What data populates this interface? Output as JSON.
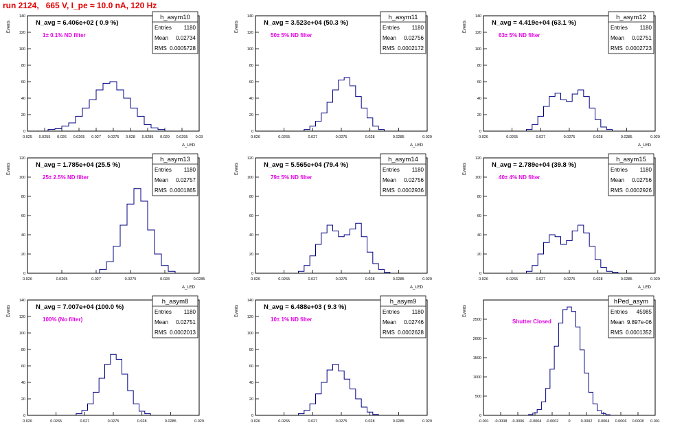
{
  "page_title": "run 2124,   665 V, I_pe ≈ 10.0 nA, 120 Hz",
  "chart_data": [
    {
      "type": "bar",
      "name": "h_asym10",
      "title": "N_avg = 6.406e+02 ( 0.9 %)",
      "annotation": "1± 0.1% ND filter",
      "stats": {
        "Entries": "1180",
        "Mean": "0.02734",
        "RMS": "0.0005728"
      },
      "xlabel": "A_LED",
      "ylabel": "Events",
      "xlim": [
        0.025,
        0.03
      ],
      "ylim": [
        0,
        140
      ],
      "xticks": [
        "0.025",
        "0.0255",
        "0.026",
        "0.0265",
        "0.027",
        "0.0275",
        "0.028",
        "0.0285",
        "0.029",
        "0.0295",
        "0.03"
      ],
      "yticks": [
        "0",
        "20",
        "40",
        "60",
        "80",
        "100",
        "120",
        "140"
      ],
      "x": [
        0.0257,
        0.0259,
        0.0261,
        0.0263,
        0.0265,
        0.0267,
        0.0269,
        0.0271,
        0.0273,
        0.0275,
        0.0277,
        0.0279,
        0.0281,
        0.0283,
        0.0285,
        0.0287,
        0.0289
      ],
      "values": [
        2,
        3,
        6,
        10,
        18,
        28,
        38,
        50,
        58,
        60,
        50,
        40,
        28,
        18,
        8,
        4,
        2
      ]
    },
    {
      "type": "bar",
      "name": "h_asym11",
      "title": "N_avg = 3.523e+04 (50.3 %)",
      "annotation": "50± 5% ND filter",
      "stats": {
        "Entries": "1180",
        "Mean": "0.02756",
        "RMS": "0.0002172"
      },
      "xlabel": "A_LED",
      "ylabel": "Events",
      "xlim": [
        0.026,
        0.029
      ],
      "ylim": [
        0,
        140
      ],
      "xticks": [
        "0.026",
        "0.0265",
        "0.027",
        "0.0275",
        "0.028",
        "0.0285",
        "0.029"
      ],
      "yticks": [
        "0",
        "20",
        "40",
        "60",
        "80",
        "100",
        "120",
        "140"
      ],
      "x": [
        0.0269,
        0.027,
        0.0271,
        0.0272,
        0.0273,
        0.0274,
        0.0275,
        0.0276,
        0.0277,
        0.0278,
        0.0279,
        0.028,
        0.0281,
        0.0282
      ],
      "values": [
        2,
        6,
        12,
        22,
        35,
        50,
        62,
        65,
        55,
        42,
        28,
        16,
        6,
        2
      ]
    },
    {
      "type": "bar",
      "name": "h_asym12",
      "title": "N_avg = 4.419e+04 (63.1 %)",
      "annotation": "63± 5% ND filter",
      "stats": {
        "Entries": "1180",
        "Mean": "0.02751",
        "RMS": "0.0002723"
      },
      "xlabel": "A_LED",
      "ylabel": "Events",
      "xlim": [
        0.026,
        0.029
      ],
      "ylim": [
        0,
        140
      ],
      "xticks": [
        "0.026",
        "0.0265",
        "0.027",
        "0.0275",
        "0.028",
        "0.0285",
        "0.029"
      ],
      "yticks": [
        "0",
        "20",
        "40",
        "60",
        "80",
        "100",
        "120",
        "140"
      ],
      "x": [
        0.0268,
        0.0269,
        0.027,
        0.0271,
        0.0272,
        0.0273,
        0.0274,
        0.0275,
        0.0276,
        0.0277,
        0.0278,
        0.0279,
        0.028,
        0.0281,
        0.0282
      ],
      "values": [
        2,
        8,
        18,
        30,
        42,
        46,
        38,
        36,
        45,
        50,
        42,
        28,
        14,
        5,
        2
      ]
    },
    {
      "type": "bar",
      "name": "h_asym13",
      "title": "N_avg = 1.785e+04 (25.5 %)",
      "annotation": "25± 2.5% ND filter",
      "stats": {
        "Entries": "1180",
        "Mean": "0.02757",
        "RMS": "0.0001865"
      },
      "xlabel": "A_LED",
      "ylabel": "Events",
      "xlim": [
        0.026,
        0.0285
      ],
      "ylim": [
        0,
        120
      ],
      "xticks": [
        "0.026",
        "0.0265",
        "0.027",
        "0.0275",
        "0.028",
        "0.0285"
      ],
      "yticks": [
        "0",
        "20",
        "40",
        "60",
        "80",
        "100",
        "120"
      ],
      "x": [
        0.0271,
        0.0272,
        0.0273,
        0.0274,
        0.0275,
        0.0276,
        0.0277,
        0.0278,
        0.0279,
        0.028,
        0.0281
      ],
      "values": [
        4,
        12,
        28,
        50,
        72,
        88,
        75,
        45,
        20,
        8,
        2
      ]
    },
    {
      "type": "bar",
      "name": "h_asym14",
      "title": "N_avg = 5.565e+04 (79.4 %)",
      "annotation": "79± 5% ND filter",
      "stats": {
        "Entries": "1180",
        "Mean": "0.02756",
        "RMS": "0.0002936"
      },
      "xlabel": "A_LED",
      "ylabel": "Events",
      "xlim": [
        0.026,
        0.029
      ],
      "ylim": [
        0,
        120
      ],
      "xticks": [
        "0.026",
        "0.0265",
        "0.027",
        "0.0275",
        "0.028",
        "0.0285",
        "0.029"
      ],
      "yticks": [
        "0",
        "20",
        "40",
        "60",
        "80",
        "100",
        "120"
      ],
      "x": [
        0.0268,
        0.0269,
        0.027,
        0.0271,
        0.0272,
        0.0273,
        0.0274,
        0.0275,
        0.0276,
        0.0277,
        0.0278,
        0.0279,
        0.028,
        0.0281,
        0.0282,
        0.0283
      ],
      "values": [
        2,
        8,
        18,
        30,
        42,
        50,
        44,
        38,
        40,
        46,
        52,
        38,
        22,
        10,
        4,
        1
      ]
    },
    {
      "type": "bar",
      "name": "h_asym15",
      "title": "N_avg = 2.789e+04 (39.8 %)",
      "annotation": "40± 4% ND filter",
      "stats": {
        "Entries": "1180",
        "Mean": "0.02756",
        "RMS": "0.0002926"
      },
      "xlabel": "A_LED",
      "ylabel": "Events",
      "xlim": [
        0.026,
        0.029
      ],
      "ylim": [
        0,
        120
      ],
      "xticks": [
        "0.026",
        "0.0265",
        "0.027",
        "0.0275",
        "0.028",
        "0.0285",
        "0.029"
      ],
      "yticks": [
        "0",
        "20",
        "40",
        "60",
        "80",
        "100",
        "120"
      ],
      "x": [
        0.0268,
        0.0269,
        0.027,
        0.0271,
        0.0272,
        0.0273,
        0.0274,
        0.0275,
        0.0276,
        0.0277,
        0.0278,
        0.0279,
        0.028,
        0.0281,
        0.0282,
        0.0283
      ],
      "values": [
        2,
        8,
        20,
        32,
        40,
        38,
        30,
        34,
        44,
        50,
        42,
        28,
        14,
        6,
        2,
        1
      ]
    },
    {
      "type": "bar",
      "name": "h_asym8",
      "title": "N_avg = 7.007e+04 (100.0 %)",
      "annotation": "100% (No filter)",
      "stats": {
        "Entries": "1180",
        "Mean": "0.02751",
        "RMS": "0.0002013"
      },
      "xlabel": "A_LED",
      "ylabel": "Events",
      "xlim": [
        0.026,
        0.029
      ],
      "ylim": [
        0,
        140
      ],
      "xticks": [
        "0.026",
        "0.0265",
        "0.027",
        "0.0275",
        "0.028",
        "0.0285",
        "0.029"
      ],
      "yticks": [
        "0",
        "20",
        "40",
        "60",
        "80",
        "100",
        "120",
        "140"
      ],
      "x": [
        0.0269,
        0.027,
        0.0271,
        0.0272,
        0.0273,
        0.0274,
        0.0275,
        0.0276,
        0.0277,
        0.0278,
        0.0279,
        0.028,
        0.0281
      ],
      "values": [
        2,
        6,
        14,
        28,
        45,
        62,
        74,
        68,
        50,
        30,
        14,
        5,
        2
      ]
    },
    {
      "type": "bar",
      "name": "h_asym9",
      "title": "N_avg = 6.488e+03 ( 9.3 %)",
      "annotation": "10± 1% ND filter",
      "stats": {
        "Entries": "1180",
        "Mean": "0.02746",
        "RMS": "0.0002628"
      },
      "xlabel": "A_LED",
      "ylabel": "Events",
      "xlim": [
        0.026,
        0.029
      ],
      "ylim": [
        0,
        140
      ],
      "xticks": [
        "0.026",
        "0.0265",
        "0.027",
        "0.0275",
        "0.028",
        "0.0285",
        "0.029"
      ],
      "yticks": [
        "0",
        "20",
        "40",
        "60",
        "80",
        "100",
        "120",
        "140"
      ],
      "x": [
        0.0268,
        0.0269,
        0.027,
        0.0271,
        0.0272,
        0.0273,
        0.0274,
        0.0275,
        0.0276,
        0.0277,
        0.0278,
        0.0279,
        0.028,
        0.0281
      ],
      "values": [
        2,
        6,
        14,
        26,
        40,
        55,
        62,
        54,
        44,
        32,
        20,
        10,
        4,
        1
      ]
    },
    {
      "type": "bar",
      "name": "hPed_asym",
      "title": "",
      "annotation": "Shutter Closed",
      "stats": {
        "Entries": "45985",
        "Mean": "9.897e-06",
        "RMS": "0.0001352"
      },
      "xlabel": "",
      "ylabel": "Events",
      "xlim": [
        -0.001,
        0.001
      ],
      "ylim": [
        0,
        3000
      ],
      "xticks": [
        "-0.001",
        "-0.0008",
        "-0.0006",
        "-0.0004",
        "-0.0002",
        "0",
        "0.0002",
        "0.0004",
        "0.0006",
        "0.0008",
        "0.001"
      ],
      "yticks": [
        "0",
        "500",
        "1000",
        "1500",
        "2000",
        "2500"
      ],
      "x": [
        -0.00045,
        -0.0004,
        -0.00035,
        -0.0003,
        -0.00025,
        -0.0002,
        -0.00015,
        -0.0001,
        -5e-05,
        0.0,
        5e-05,
        0.0001,
        0.00015,
        0.0002,
        0.00025,
        0.0003,
        0.00035,
        0.0004,
        0.00045
      ],
      "values": [
        20,
        60,
        150,
        350,
        700,
        1200,
        1800,
        2400,
        2750,
        2820,
        2700,
        2300,
        1700,
        1100,
        600,
        300,
        120,
        50,
        15
      ]
    }
  ],
  "colors": {
    "title": "#e00000",
    "annotation": "#e000e0",
    "line": "#000080",
    "axis": "#000000"
  }
}
